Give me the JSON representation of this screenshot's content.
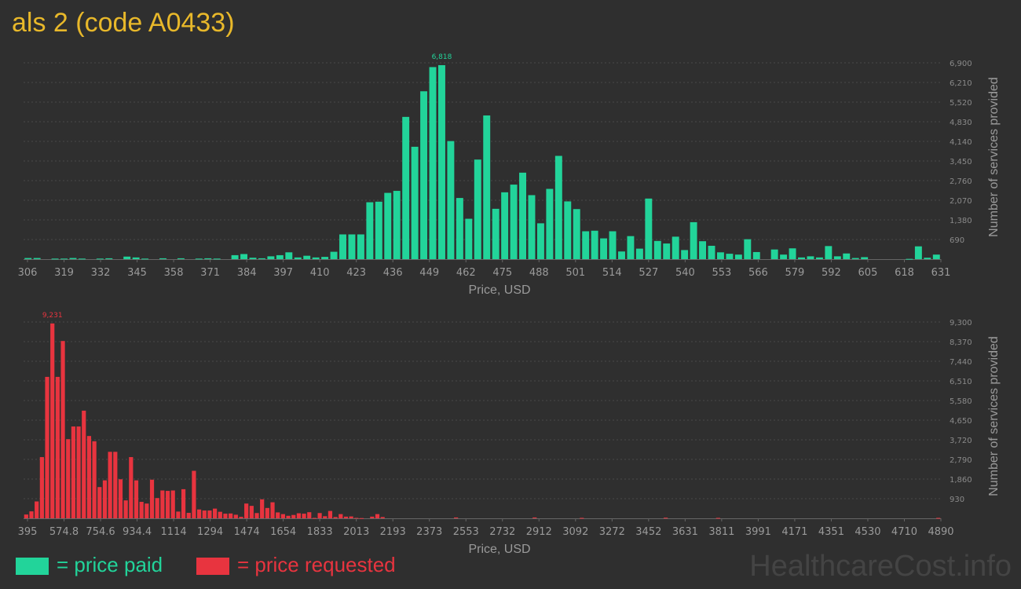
{
  "title": "als 2 (code A0433)",
  "legend": {
    "paid_label": "= price paid",
    "requested_label": "= price requested",
    "paid_color": "#22d49a",
    "requested_color": "#e8343f"
  },
  "watermark": "HealthcareCost.info",
  "chart_data": [
    {
      "type": "bar",
      "name": "price-paid",
      "color": "#22d49a",
      "xlabel": "Price, USD",
      "ylabel": "Number of services provided",
      "x_ticks": [
        "306",
        "319",
        "332",
        "345",
        "358",
        "371",
        "384",
        "397",
        "410",
        "423",
        "436",
        "449",
        "462",
        "475",
        "488",
        "501",
        "514",
        "527",
        "540",
        "553",
        "566",
        "579",
        "592",
        "605",
        "618",
        "631"
      ],
      "y_ticks": [
        "690",
        "1,380",
        "2,070",
        "2,760",
        "3,450",
        "4,140",
        "4,830",
        "5,520",
        "6,210",
        "6,900"
      ],
      "ylim": [
        0,
        6900
      ],
      "x_range": [
        306,
        631
      ],
      "bin_width": 3.25,
      "peak_label": "6,818",
      "values": [
        40,
        40,
        0,
        20,
        20,
        40,
        20,
        0,
        20,
        30,
        0,
        90,
        60,
        20,
        0,
        30,
        0,
        30,
        0,
        20,
        30,
        20,
        0,
        140,
        180,
        50,
        30,
        100,
        140,
        240,
        60,
        120,
        60,
        80,
        260,
        870,
        870,
        870,
        2000,
        2020,
        2330,
        2400,
        5000,
        3950,
        5900,
        6750,
        6818,
        4150,
        2150,
        1420,
        3500,
        5050,
        1770,
        2350,
        2620,
        3040,
        2250,
        1260,
        2470,
        3630,
        2030,
        1760,
        980,
        1000,
        730,
        980,
        270,
        810,
        370,
        2130,
        640,
        550,
        790,
        320,
        1300,
        630,
        470,
        240,
        190,
        160,
        700,
        250,
        0,
        340,
        160,
        380,
        60,
        100,
        60,
        460,
        100,
        200,
        40,
        70,
        0,
        0,
        0,
        0,
        10,
        450,
        50,
        160
      ]
    },
    {
      "type": "bar",
      "name": "price-requested",
      "color": "#e8343f",
      "xlabel": "Price, USD",
      "ylabel": "Number of services provided",
      "x_ticks": [
        "395",
        "574.8",
        "754.6",
        "934.4",
        "1114",
        "1294",
        "1474",
        "1654",
        "1833",
        "2013",
        "2193",
        "2373",
        "2553",
        "2732",
        "2912",
        "3092",
        "3272",
        "3452",
        "3631",
        "3811",
        "3991",
        "4171",
        "4351",
        "4530",
        "4710",
        "4890"
      ],
      "y_ticks": [
        "930",
        "1,860",
        "2,790",
        "3,720",
        "4,650",
        "5,580",
        "6,510",
        "7,440",
        "8,370",
        "9,300"
      ],
      "ylim": [
        0,
        9300
      ],
      "x_range": [
        395,
        4890
      ],
      "bin_width": 44.95,
      "peak_label": "9,231",
      "values": [
        180,
        330,
        800,
        2900,
        6700,
        9231,
        6700,
        8400,
        3750,
        4350,
        4350,
        5100,
        3900,
        3650,
        1480,
        1800,
        3150,
        3150,
        1850,
        850,
        2900,
        1800,
        780,
        700,
        1830,
        960,
        1320,
        1300,
        1320,
        320,
        1380,
        260,
        2250,
        420,
        370,
        370,
        460,
        310,
        220,
        230,
        170,
        70,
        700,
        590,
        250,
        900,
        490,
        760,
        280,
        200,
        120,
        160,
        240,
        220,
        290,
        20,
        250,
        100,
        350,
        60,
        200,
        80,
        90,
        20,
        10,
        0,
        80,
        200,
        60,
        0,
        0,
        0,
        0,
        0,
        0,
        0,
        0,
        0,
        0,
        0,
        0,
        0,
        40,
        0,
        0,
        0,
        0,
        0,
        0,
        0,
        0,
        0,
        0,
        0,
        0,
        0,
        0,
        40,
        0,
        0,
        0,
        0,
        0,
        0,
        0,
        0,
        20,
        0,
        0,
        0,
        0,
        0,
        0,
        0,
        0,
        0,
        0,
        0,
        0,
        0,
        0,
        0,
        30,
        0,
        0,
        0,
        0,
        0,
        0,
        0,
        0,
        0,
        20,
        0,
        0,
        0,
        0,
        0,
        0,
        0,
        0,
        0,
        0,
        0,
        0,
        0,
        0,
        0,
        0,
        0,
        0,
        0,
        0,
        0,
        0,
        0,
        0,
        0,
        0,
        0,
        0,
        0,
        0,
        0,
        0,
        0,
        0,
        0,
        0,
        0,
        0,
        0,
        0,
        0,
        20
      ]
    }
  ]
}
